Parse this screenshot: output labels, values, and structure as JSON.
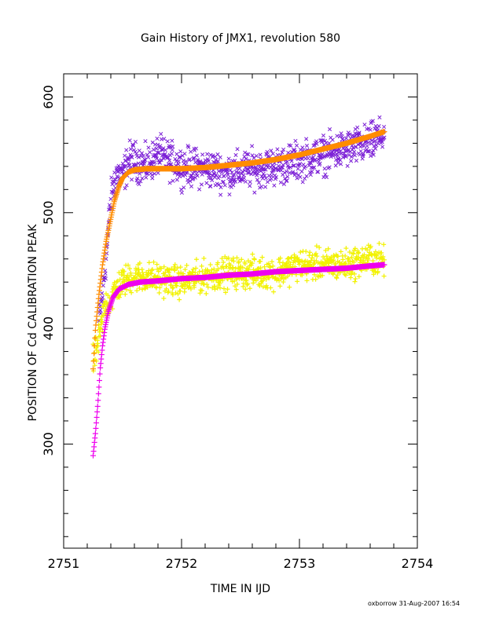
{
  "chart_data": {
    "type": "scatter",
    "title": "Gain History of JMX1, revolution 580",
    "xlabel": "TIME IN IJD",
    "ylabel": "POSITION OF Cd CALIBRATION PEAK",
    "xlim": [
      2751,
      2754
    ],
    "ylim": [
      210,
      620
    ],
    "x_ticks": [
      2751,
      2752,
      2753,
      2754
    ],
    "x_tick_labels": [
      "2751",
      "2752",
      "2753",
      "2754"
    ],
    "y_ticks": [
      300,
      400,
      500,
      600
    ],
    "y_tick_labels": [
      "300",
      "400",
      "500",
      "600"
    ],
    "grid": false,
    "credit": "oxborrow 31-Aug-2007 16:54",
    "series": [
      {
        "marker": "x",
        "color": "#7b1fd6",
        "kind": "scatter",
        "x": [
          2751.3,
          2751.35,
          2751.4,
          2751.45,
          2751.5,
          2751.55,
          2751.6,
          2751.7,
          2751.8,
          2751.9,
          2752.0,
          2752.2,
          2752.4,
          2752.6,
          2752.8,
          2753.0,
          2753.2,
          2753.4,
          2753.6,
          2753.72
        ],
        "y": [
          405,
          450,
          510,
          535,
          530,
          545,
          545,
          540,
          550,
          545,
          540,
          538,
          535,
          538,
          540,
          545,
          550,
          555,
          560,
          568
        ]
      },
      {
        "marker": "+",
        "color": "#f2f200",
        "kind": "scatter",
        "x": [
          2751.25,
          2751.3,
          2751.35,
          2751.4,
          2751.45,
          2751.5,
          2751.6,
          2751.8,
          2752.0,
          2752.2,
          2752.4,
          2752.6,
          2752.8,
          2753.0,
          2753.2,
          2753.4,
          2753.6,
          2753.72
        ],
        "y": [
          370,
          390,
          420,
          425,
          435,
          440,
          445,
          443,
          440,
          445,
          448,
          448,
          448,
          455,
          455,
          455,
          460,
          458
        ]
      },
      {
        "marker": "+",
        "color": "#ff8c00",
        "kind": "fit",
        "x": [
          2751.25,
          2751.27,
          2751.3,
          2751.33,
          2751.36,
          2751.4,
          2751.43,
          2751.47,
          2751.5,
          2751.55,
          2751.6,
          2751.7,
          2751.8,
          2752.0,
          2752.2,
          2752.4,
          2752.6,
          2752.8,
          2753.0,
          2753.2,
          2753.4,
          2753.6,
          2753.72
        ],
        "y": [
          365,
          400,
          430,
          455,
          475,
          495,
          510,
          523,
          530,
          535,
          537,
          538,
          538,
          538,
          539,
          541,
          543,
          546,
          550,
          555,
          560,
          566,
          570
        ]
      },
      {
        "marker": "+",
        "color": "#ee00ee",
        "kind": "fit",
        "x": [
          2751.25,
          2751.27,
          2751.29,
          2751.31,
          2751.33,
          2751.35,
          2751.38,
          2751.42,
          2751.47,
          2751.55,
          2751.65,
          2751.8,
          2752.0,
          2752.2,
          2752.4,
          2752.6,
          2752.8,
          2753.0,
          2753.2,
          2753.4,
          2753.6,
          2753.72
        ],
        "y": [
          290,
          310,
          335,
          365,
          385,
          400,
          415,
          427,
          434,
          438,
          440,
          441,
          443,
          444,
          446,
          447,
          449,
          450,
          451,
          452,
          454,
          455
        ]
      }
    ]
  }
}
